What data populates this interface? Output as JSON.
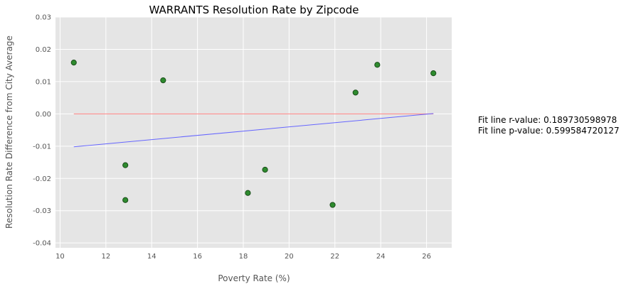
{
  "chart_data": {
    "type": "scatter",
    "title": "WARRANTS Resolution Rate by Zipcode",
    "xlabel": "Poverty Rate (%)",
    "ylabel": "Resolution Rate Difference from City Average",
    "xlim": [
      9.8,
      27.1
    ],
    "ylim": [
      -0.0415,
      0.03
    ],
    "xticks": [
      10,
      12,
      14,
      16,
      18,
      20,
      22,
      24,
      26
    ],
    "xtick_labels": [
      "10",
      "12",
      "14",
      "16",
      "18",
      "20",
      "22",
      "24",
      "26"
    ],
    "yticks": [
      -0.04,
      -0.03,
      -0.02,
      -0.01,
      0.0,
      0.01,
      0.02,
      0.03
    ],
    "ytick_labels": [
      "-0.04",
      "-0.03",
      "-0.02",
      "-0.01",
      "0.00",
      "0.01",
      "0.02",
      "0.03"
    ],
    "grid": true,
    "points": [
      {
        "x": 10.6,
        "y": 0.0159
      },
      {
        "x": 12.85,
        "y": -0.0159
      },
      {
        "x": 12.85,
        "y": -0.0267
      },
      {
        "x": 14.5,
        "y": 0.0104
      },
      {
        "x": 18.2,
        "y": -0.0245
      },
      {
        "x": 18.95,
        "y": -0.0173
      },
      {
        "x": 21.9,
        "y": -0.0282
      },
      {
        "x": 22.9,
        "y": 0.0066
      },
      {
        "x": 23.85,
        "y": 0.0152
      },
      {
        "x": 26.3,
        "y": 0.0126
      }
    ],
    "reference_line": {
      "x": [
        10.6,
        26.3
      ],
      "y": [
        0.0,
        0.0
      ]
    },
    "fit_line": {
      "x": [
        10.6,
        26.3
      ],
      "y": [
        -0.0102,
        0.0001
      ]
    },
    "annotations": [
      "Fit line r-value: 0.189730598978",
      "Fit line p-value: 0.599584720127"
    ],
    "colors": {
      "plot_background": "#e5e5e5",
      "grid": "#ffffff",
      "points": "#2e8b2e",
      "point_edge": "#1a4d1a",
      "reference_line": "#ff8080",
      "fit_line": "#6666ff"
    }
  }
}
